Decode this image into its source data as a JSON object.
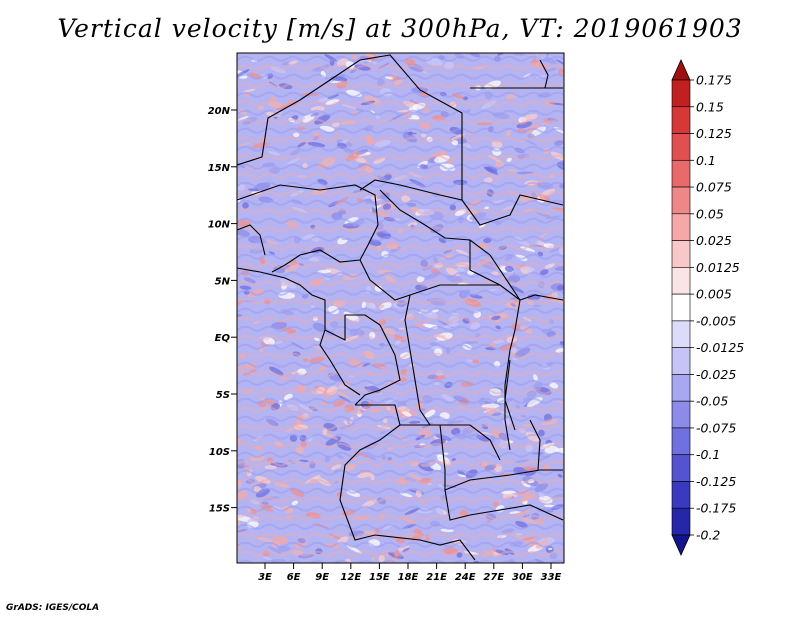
{
  "title": "Vertical velocity [m/s] at 300hPa, VT: 2019061903",
  "credit": "GrADS: IGES/COLA",
  "map": {
    "lat_labels": [
      "20N",
      "15N",
      "10N",
      "5N",
      "EQ",
      "5S",
      "10S",
      "15S"
    ],
    "lon_labels": [
      "3E",
      "6E",
      "9E",
      "12E",
      "15E",
      "18E",
      "21E",
      "24E",
      "27E",
      "30E",
      "33E"
    ],
    "field": "vertical velocity",
    "units": "m/s",
    "level": "300hPa"
  },
  "colorbar": {
    "labels": [
      "0.175",
      "0.15",
      "0.125",
      "0.1",
      "0.075",
      "0.05",
      "0.025",
      "0.0125",
      "0.005",
      "-0.005",
      "-0.0125",
      "-0.025",
      "-0.05",
      "-0.075",
      "-0.1",
      "-0.125",
      "-0.175",
      "-0.2"
    ],
    "colors": [
      "#a01010",
      "#c02020",
      "#d63838",
      "#e05050",
      "#e86a6a",
      "#ee8888",
      "#f4a8a8",
      "#f8c8c8",
      "#fbe4e4",
      "#ffffff",
      "#dcdcfa",
      "#c4c4f6",
      "#a8a8f0",
      "#8c8ce8",
      "#7070de",
      "#5454d0",
      "#3a3abe",
      "#2626a8",
      "#14148c"
    ]
  }
}
